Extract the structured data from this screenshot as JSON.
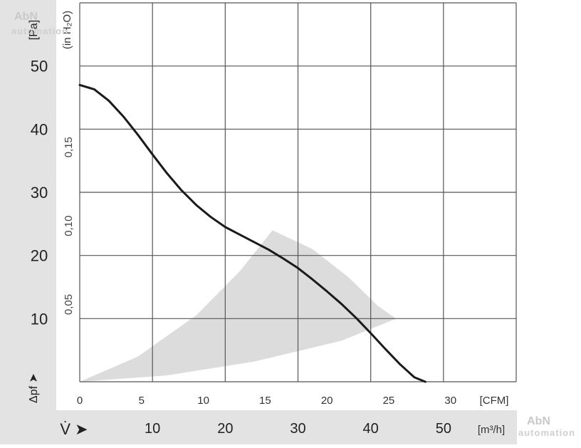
{
  "watermark": {
    "brand": "AbN",
    "sub": "automation"
  },
  "chart_data": {
    "type": "line",
    "title": "",
    "axes": {
      "pa": {
        "label": "[Pa]",
        "ticks": [
          10,
          20,
          30,
          40,
          50
        ],
        "ylim": [
          0,
          60
        ]
      },
      "in_h2o": {
        "label": "(in H₂O)",
        "ticks": [
          "0,05",
          "0,10",
          "0,15"
        ],
        "values": [
          0.05,
          0.1,
          0.15
        ]
      },
      "cfm": {
        "label": "[CFM]",
        "ticks": [
          0,
          5,
          10,
          15,
          20,
          25,
          30
        ],
        "xlim": [
          0,
          35.3
        ]
      },
      "m3h": {
        "label": "[m³/h]",
        "ticks": [
          10,
          20,
          30,
          40,
          50
        ],
        "xlim": [
          0,
          60
        ]
      },
      "pressure_symbol": "Δpf ➤",
      "flow_symbol": "V̇ ➤"
    },
    "grid": true,
    "series": [
      {
        "x_m3h": [
          0,
          2,
          4,
          6,
          8,
          10,
          12,
          14,
          16,
          18,
          20,
          22,
          24,
          26,
          28,
          30,
          32,
          34,
          36,
          38,
          40,
          42,
          44,
          46,
          47.5
        ],
        "y_pa": [
          47,
          46.3,
          44.5,
          42,
          39.1,
          36,
          33,
          30.3,
          28,
          26.1,
          24.5,
          23.3,
          22.1,
          20.9,
          19.5,
          18,
          16.2,
          14.3,
          12.3,
          10.1,
          7.7,
          5.2,
          2.8,
          0.7,
          0
        ]
      }
    ],
    "operating_region": {
      "upper_boundary": {
        "x_m3h": [
          0,
          8,
          16,
          22,
          26.5
        ],
        "y_pa": [
          0,
          4,
          10.5,
          17.5,
          24
        ]
      },
      "outer_boundary": {
        "x_m3h": [
          26.5,
          32,
          37,
          41,
          43.5
        ],
        "y_pa": [
          24,
          21,
          16.5,
          12,
          10
        ]
      },
      "lower_boundary": {
        "x_m3h": [
          43.5,
          36,
          24,
          12,
          0
        ],
        "y_pa": [
          10,
          6.5,
          3.2,
          1,
          0
        ]
      }
    }
  }
}
